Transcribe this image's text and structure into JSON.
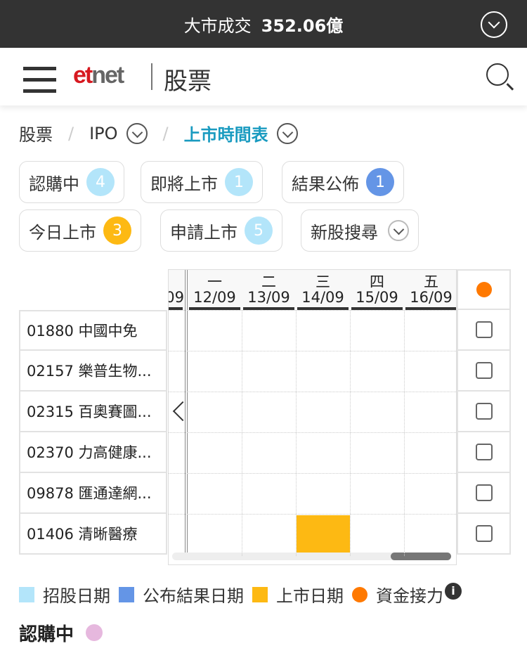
{
  "topbar": {
    "label": "大市成交",
    "value": "352.06億"
  },
  "nav": {
    "logo": "etnet",
    "title": "股票"
  },
  "breadcrumb": {
    "items": [
      "股票",
      "IPO",
      "上市時間表"
    ]
  },
  "chips": [
    {
      "label": "認購中",
      "count": "4",
      "color": "#b3e5fa"
    },
    {
      "label": "即將上市",
      "count": "1",
      "color": "#b3e5fa"
    },
    {
      "label": "結果公佈",
      "count": "1",
      "color": "#6495e6"
    },
    {
      "label": "今日上市",
      "count": "3",
      "color": "#fdb913"
    },
    {
      "label": "申請上市",
      "count": "5",
      "color": "#b3e5fa"
    },
    {
      "label": "新股搜尋"
    }
  ],
  "calendar": {
    "prev_col": "09",
    "days": [
      {
        "wd": "一",
        "date": "12/09"
      },
      {
        "wd": "二",
        "date": "13/09"
      },
      {
        "wd": "三",
        "date": "14/09"
      },
      {
        "wd": "四",
        "date": "15/09"
      },
      {
        "wd": "五",
        "date": "16/09"
      }
    ],
    "stocks": [
      "01880 中國中免",
      "02157 樂普生物...",
      "02315 百奧賽圖...",
      "02370 力高健康...",
      "09878 匯通達網...",
      "01406 清晰醫療"
    ],
    "bars": [
      {
        "stock": 5,
        "day": 2,
        "type": "上市日期"
      }
    ]
  },
  "legend": [
    {
      "label": "招股日期",
      "color": "#b3e5fa"
    },
    {
      "label": "公布結果日期",
      "color": "#6495e6"
    },
    {
      "label": "上市日期",
      "color": "#fdb913"
    },
    {
      "label": "資金接力",
      "color": "#ff7900"
    }
  ],
  "section_title": "認購中"
}
